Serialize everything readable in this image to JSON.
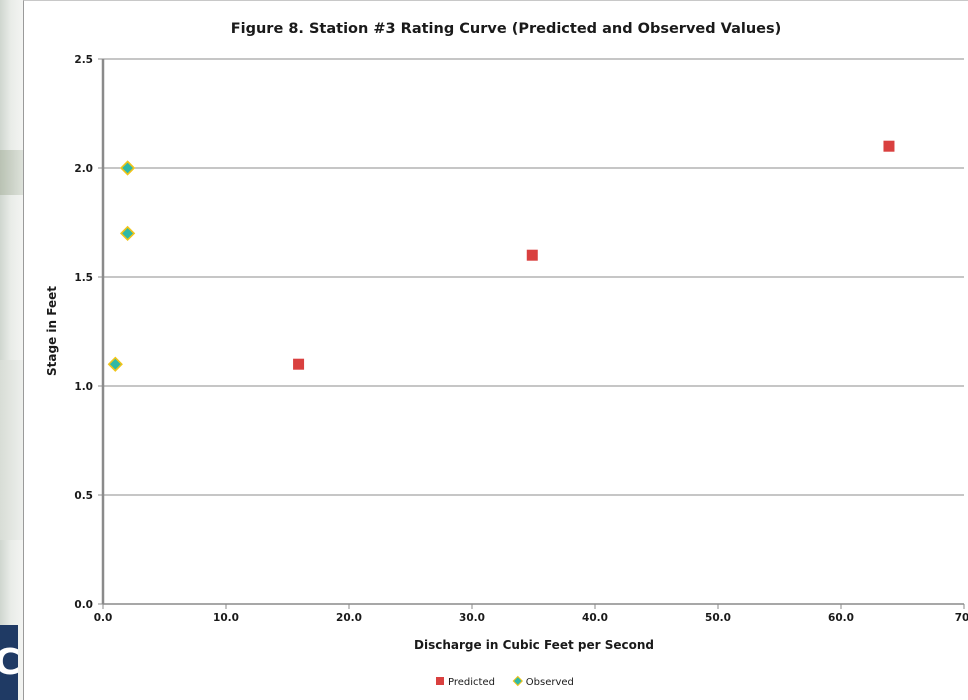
{
  "chart_data": {
    "type": "scatter",
    "title": "Figure 8.  Station #3 Rating Curve (Predicted and Observed Values)",
    "xlabel": "Discharge in Cubic Feet per Second",
    "ylabel": "Stage in Feet",
    "xlim": [
      0,
      70
    ],
    "ylim": [
      0,
      2.5
    ],
    "x_ticks": [
      "0.0",
      "10.0",
      "20.0",
      "30.0",
      "40.0",
      "50.0",
      "60.0",
      "70."
    ],
    "y_ticks": [
      "0.0",
      "0.5",
      "1.0",
      "1.5",
      "2.0",
      "2.5"
    ],
    "x_tick_values": [
      0,
      10,
      20,
      30,
      40,
      50,
      60,
      70
    ],
    "y_tick_values": [
      0,
      0.5,
      1.0,
      1.5,
      2.0,
      2.5
    ],
    "grid": "horizontal",
    "legend_position": "bottom",
    "series": [
      {
        "name": "Predicted",
        "marker": "square",
        "color": "#d9403f",
        "x": [
          15.9,
          34.9,
          63.9
        ],
        "y": [
          1.1,
          1.6,
          2.1
        ]
      },
      {
        "name": "Observed",
        "marker": "diamond",
        "color": "#2fb8a6",
        "edge_color": "#f0c419",
        "x": [
          1.0,
          2.0,
          2.0
        ],
        "y": [
          1.1,
          1.7,
          2.0
        ]
      }
    ]
  },
  "left_logo_text": "C"
}
